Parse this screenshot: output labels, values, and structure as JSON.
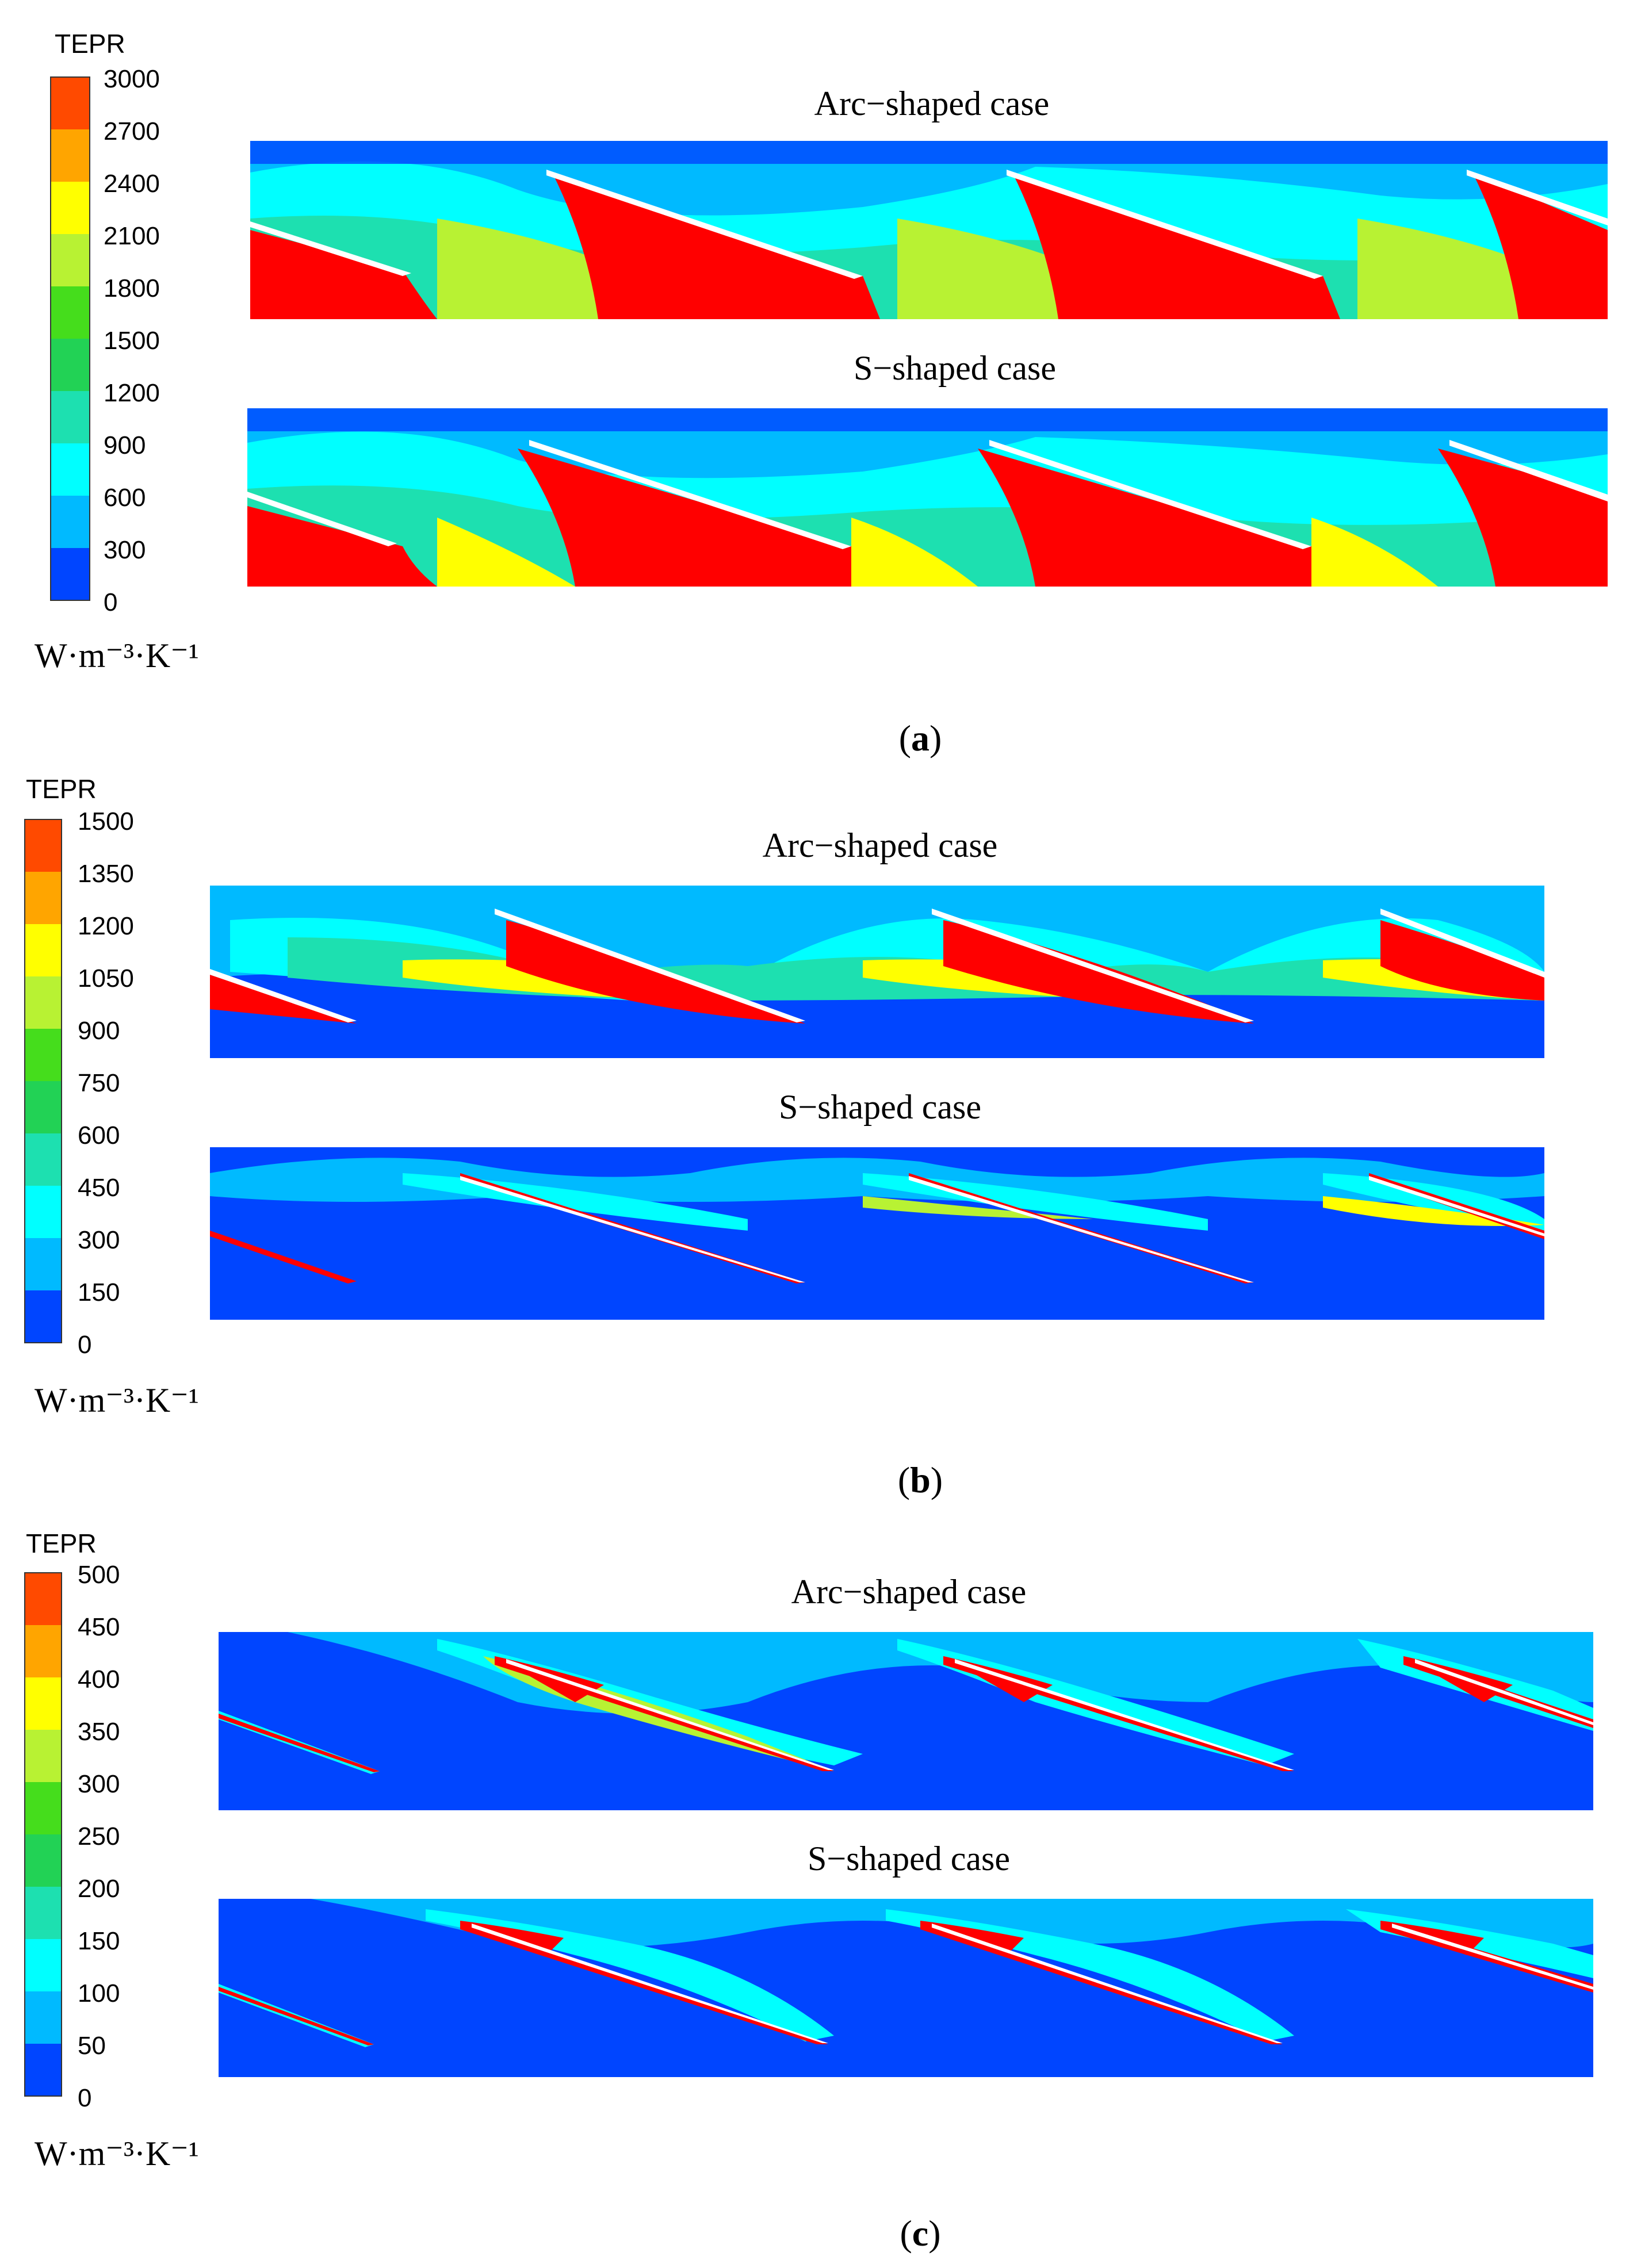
{
  "colors": {
    "red": "#ff0000",
    "orange_red": "#ff4a00",
    "orange": "#ffa500",
    "yellow": "#ffff00",
    "yellow_green": "#b8f233",
    "green": "#45dd1c",
    "green2": "#22d255",
    "teal": "#1de0b0",
    "cyan": "#00ffff",
    "light_blue": "#00baff",
    "deep_blue": "#0045ff",
    "blade": "#ffffff"
  },
  "panels": [
    {
      "id": "a",
      "caption_letter": "a",
      "legend": {
        "title": "TEPR",
        "ticks": [
          "3000",
          "2700",
          "2400",
          "2100",
          "1800",
          "1500",
          "1200",
          "900",
          "600",
          "300",
          "0"
        ],
        "unit": "W·m⁻³·K⁻¹"
      },
      "cases": [
        {
          "title": "Arc−shaped case",
          "hot_color": "red",
          "fill_level": "high"
        },
        {
          "title": "S−shaped case",
          "hot_color": "red",
          "fill_level": "high"
        }
      ]
    },
    {
      "id": "b",
      "caption_letter": "b",
      "legend": {
        "title": "TEPR",
        "ticks": [
          "1500",
          "1350",
          "1200",
          "1050",
          "900",
          "750",
          "600",
          "450",
          "300",
          "150",
          "0"
        ],
        "unit": "W·m⁻³·K⁻¹"
      },
      "cases": [
        {
          "title": "Arc−shaped case",
          "hot_color": "red",
          "fill_level": "medium"
        },
        {
          "title": "S−shaped case",
          "hot_color": "red",
          "fill_level": "low"
        }
      ]
    },
    {
      "id": "c",
      "caption_letter": "c",
      "legend": {
        "title": "TEPR",
        "ticks": [
          "500",
          "450",
          "400",
          "350",
          "300",
          "250",
          "200",
          "150",
          "100",
          "50",
          "0"
        ],
        "unit": "W·m⁻³·K⁻¹"
      },
      "cases": [
        {
          "title": "Arc−shaped case",
          "hot_color": "red",
          "fill_level": "low"
        },
        {
          "title": "S−shaped case",
          "hot_color": "red",
          "fill_level": "low"
        }
      ]
    }
  ]
}
